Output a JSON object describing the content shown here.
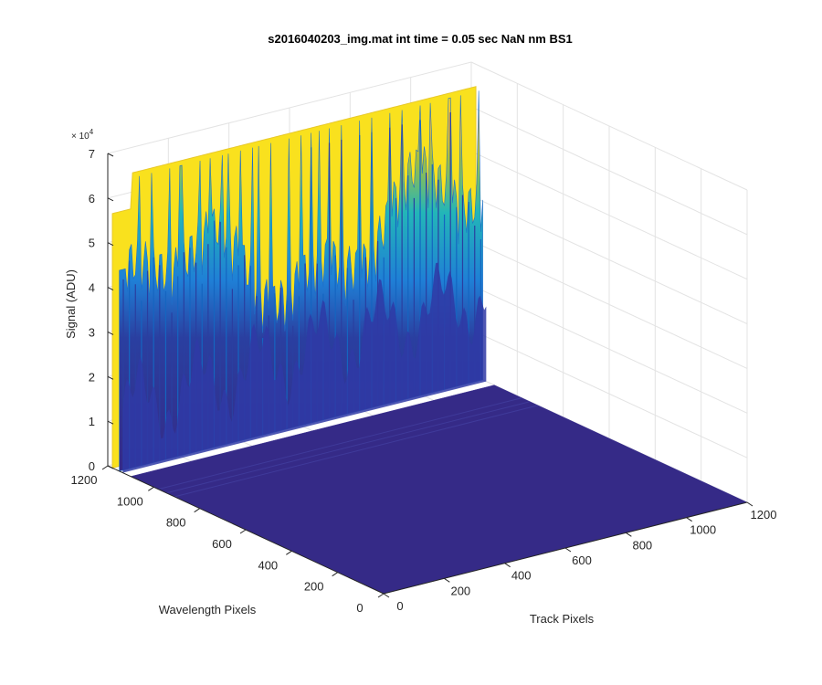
{
  "chart_data": {
    "type": "surface",
    "title": "s2016040203_img.mat int time = 0.05 sec  NaN nm BS1",
    "xlabel": "Track Pixels",
    "ylabel": "Wavelength Pixels",
    "zlabel": "Signal (ADU)",
    "x_ticks": [
      "0",
      "200",
      "400",
      "600",
      "800",
      "1000",
      "1200"
    ],
    "y_ticks": [
      "0",
      "200",
      "400",
      "600",
      "800",
      "1000",
      "1200"
    ],
    "z_ticks": [
      "0",
      "1",
      "2",
      "3",
      "4",
      "5",
      "6",
      "7"
    ],
    "z_exponent_prefix": "× 10",
    "z_exponent_power": "4",
    "xlim": [
      0,
      1200
    ],
    "ylim": [
      0,
      1200
    ],
    "zlim": [
      0,
      70000
    ],
    "grid": true,
    "colormap": "parula",
    "colors": {
      "low": "#352a87",
      "mid_low": "#1f7fd6",
      "mid": "#22b6b8",
      "mid_high": "#a5be3e",
      "high": "#f9e11e"
    },
    "surface_summary": {
      "signal_region_wavelength_range": [
        1100,
        1200
      ],
      "signal_region_track_range": [
        0,
        1200
      ],
      "background_level": 500,
      "typical_mid_level": 30000,
      "peak_level": 65000,
      "edge_level_track0": 45000
    }
  }
}
